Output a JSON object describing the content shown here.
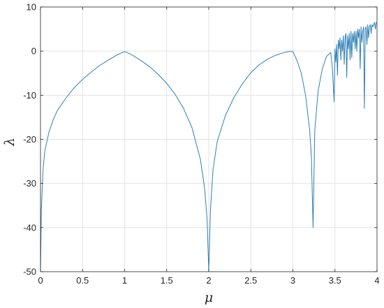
{
  "chart_data": {
    "type": "line",
    "xlabel": "μ",
    "ylabel": "λ",
    "xlim": [
      0,
      4
    ],
    "ylim": [
      -50,
      10
    ],
    "grid": true,
    "x_ticks": [
      0,
      0.5,
      1,
      1.5,
      2,
      2.5,
      3,
      3.5,
      4
    ],
    "x_tick_labels": [
      "0",
      "0.5",
      "1",
      "1.5",
      "2",
      "2.5",
      "3",
      "3.5",
      "4"
    ],
    "y_ticks": [
      10,
      0,
      -10,
      -20,
      -30,
      -40,
      -50
    ],
    "y_tick_labels": [
      "10",
      "0",
      "-10",
      "-20",
      "-30",
      "-40",
      "-50"
    ],
    "line_color": "#2f7fb6",
    "series": [
      {
        "x": [
          0.0,
          0.01,
          0.03,
          0.05,
          0.1,
          0.15,
          0.2,
          0.3,
          0.4,
          0.5,
          0.6,
          0.7,
          0.8,
          0.9,
          0.95,
          1.0,
          1.05,
          1.1,
          1.2,
          1.3,
          1.4,
          1.5,
          1.6,
          1.7,
          1.8,
          1.9,
          1.95,
          1.98,
          2.0,
          2.02,
          2.05,
          2.1,
          2.2,
          2.3,
          2.4,
          2.5,
          2.6,
          2.7,
          2.8,
          2.9,
          2.95,
          3.0,
          3.05,
          3.1,
          3.15,
          3.2,
          3.22,
          3.24,
          3.26,
          3.3,
          3.35,
          3.4,
          3.45,
          3.47,
          3.49,
          3.5,
          3.51,
          3.52,
          3.53,
          3.54,
          3.55,
          3.56,
          3.57,
          3.58,
          3.59,
          3.6,
          3.61,
          3.62,
          3.63,
          3.64,
          3.65,
          3.66,
          3.67,
          3.68,
          3.69,
          3.7,
          3.71,
          3.72,
          3.73,
          3.74,
          3.75,
          3.76,
          3.77,
          3.78,
          3.79,
          3.8,
          3.81,
          3.82,
          3.83,
          3.84,
          3.85,
          3.86,
          3.87,
          3.88,
          3.89,
          3.9,
          3.91,
          3.92,
          3.93,
          3.94,
          3.95,
          3.96,
          3.97,
          3.98,
          3.99,
          4.0
        ],
        "y": [
          -50,
          -36,
          -27,
          -22.8,
          -18.4,
          -15.6,
          -13.5,
          -10.7,
          -8.3,
          -6.4,
          -4.8,
          -3.3,
          -2.1,
          -1.0,
          -0.5,
          -0.1,
          -0.5,
          -1.0,
          -2.2,
          -3.6,
          -5.3,
          -7.3,
          -9.8,
          -13.0,
          -17.3,
          -24.5,
          -31.0,
          -38.0,
          -50,
          -36.0,
          -27.0,
          -20.5,
          -14.5,
          -10.5,
          -7.4,
          -4.9,
          -3.1,
          -1.8,
          -0.9,
          -0.3,
          -0.1,
          -0.1,
          -2.2,
          -5.0,
          -10.0,
          -18.0,
          -24.0,
          -40.0,
          -18.0,
          -9.0,
          -4.0,
          -1.2,
          -0.3,
          -4.0,
          -11.5,
          0.5,
          -2.5,
          1.5,
          -5.5,
          2.5,
          0.5,
          3.0,
          -2.0,
          2.5,
          0.0,
          3.5,
          -3.0,
          3.0,
          4.0,
          -6.0,
          3.5,
          0.5,
          4.0,
          -2.0,
          4.5,
          -1.5,
          4.0,
          2.0,
          4.5,
          0.5,
          4.5,
          0.0,
          5.0,
          3.0,
          5.0,
          -4.0,
          5.5,
          2.0,
          4.5,
          5.5,
          -13.0,
          5.0,
          5.5,
          1.5,
          6.0,
          3.0,
          5.5,
          6.0,
          4.0,
          6.0,
          5.5,
          6.0,
          6.5,
          5.0,
          6.5,
          6.5
        ]
      }
    ]
  }
}
